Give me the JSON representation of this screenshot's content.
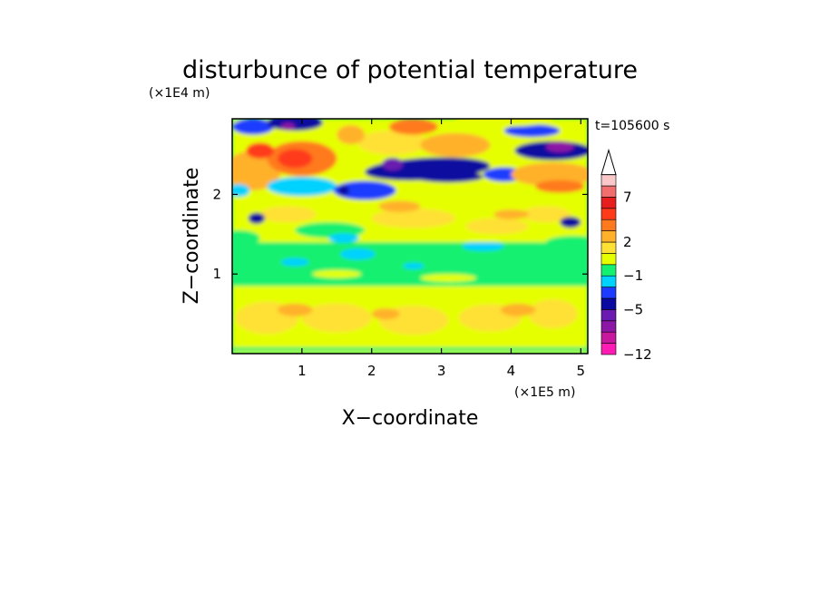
{
  "chart_data": {
    "type": "heatmap",
    "title": "disturbunce of potential temperature",
    "time_label": "t=105600 s",
    "xlabel": "X−coordinate",
    "ylabel": "Z−coordinate",
    "x_unit": "(×1E5 m)",
    "y_unit": "(×1E4 m)",
    "xlim": [
      0,
      5.1
    ],
    "ylim": [
      0,
      2.95
    ],
    "x_ticks": [
      1,
      2,
      3,
      4,
      5
    ],
    "y_ticks": [
      1,
      2
    ],
    "x_tick_labels": [
      "1",
      "2",
      "3",
      "4",
      "5"
    ],
    "y_tick_labels": [
      "1",
      "2"
    ],
    "colorbar": {
      "levels": [
        -12,
        -10,
        -8,
        -6,
        -5,
        -4,
        -2,
        -1,
        0,
        1,
        2,
        3,
        5,
        6,
        7,
        9,
        11
      ],
      "labeled_levels": [
        -12,
        -5,
        -1,
        2,
        7
      ],
      "labels": [
        "−12",
        "−5",
        "−1",
        "2",
        "7"
      ],
      "colors": [
        "#ff1cb5",
        "#c8189e",
        "#8c16a5",
        "#6a1ab0",
        "#0a0aa0",
        "#1e3cff",
        "#00d2ff",
        "#14f070",
        "#e6ff00",
        "#ffe034",
        "#ffb12a",
        "#ff7a1e",
        "#ff3a1a",
        "#e61e1e",
        "#f06e6e",
        "#fac8c8"
      ],
      "extend": "max"
    },
    "field_description": "Contour-filled field: yellow/orange band near the surface (z 0-0.8), green layer (z 0.8-1.4), yellow/orange band (z 1.4-2.0), alternating cold (blue/purple) and warm (orange/red) anomalies in the upper layer (z 2.0-2.95)."
  }
}
